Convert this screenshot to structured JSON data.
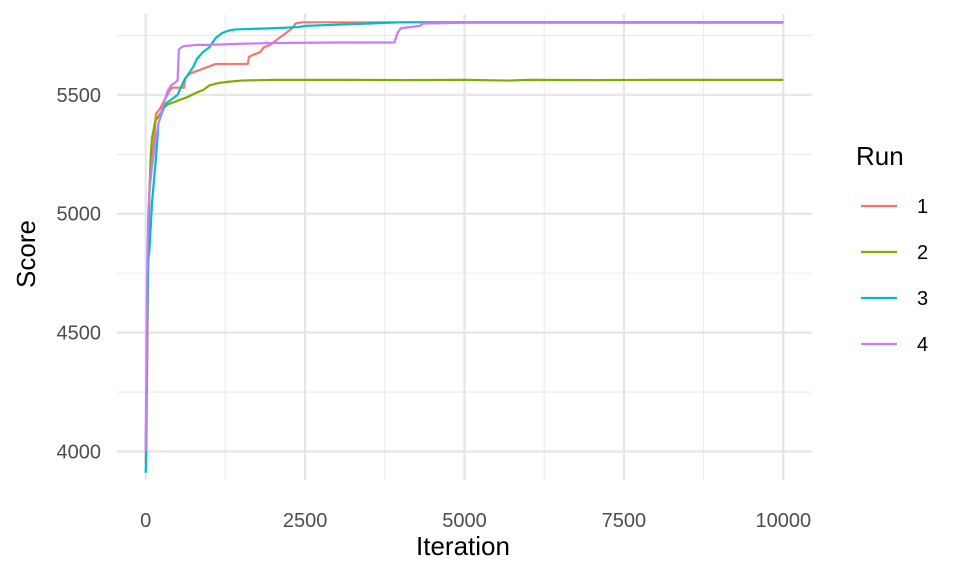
{
  "chart_data": {
    "type": "line",
    "title": "",
    "xlabel": "Iteration",
    "ylabel": "Score",
    "xlim": [
      -450,
      10450
    ],
    "ylim": [
      3880,
      5840
    ],
    "x_major_ticks": [
      0,
      2500,
      5000,
      7500,
      10000
    ],
    "x_tick_labels": [
      "0",
      "2500",
      "5000",
      "7500",
      "10000"
    ],
    "x_minor_ticks": [
      1250,
      3750,
      6250,
      8750
    ],
    "y_major_ticks": [
      4000,
      4500,
      5000,
      5500
    ],
    "y_tick_labels": [
      "4000",
      "4500",
      "5000",
      "5500"
    ],
    "y_minor_ticks": [
      4250,
      4750,
      5250,
      5750
    ],
    "grid": true,
    "legend": {
      "title": "Run",
      "position": "right"
    },
    "series": [
      {
        "name": "1",
        "color": "#F8766D",
        "points": [
          [
            0,
            3950
          ],
          [
            20,
            4300
          ],
          [
            40,
            4800
          ],
          [
            60,
            5100
          ],
          [
            80,
            5200
          ],
          [
            100,
            5260
          ],
          [
            130,
            5300
          ],
          [
            160,
            5420
          ],
          [
            220,
            5440
          ],
          [
            300,
            5480
          ],
          [
            380,
            5520
          ],
          [
            420,
            5530
          ],
          [
            600,
            5530
          ],
          [
            620,
            5570
          ],
          [
            700,
            5590
          ],
          [
            800,
            5600
          ],
          [
            900,
            5610
          ],
          [
            1000,
            5620
          ],
          [
            1100,
            5630
          ],
          [
            1300,
            5630
          ],
          [
            1400,
            5630
          ],
          [
            1600,
            5630
          ],
          [
            1620,
            5660
          ],
          [
            1700,
            5670
          ],
          [
            1800,
            5680
          ],
          [
            1850,
            5700
          ],
          [
            1950,
            5710
          ],
          [
            2050,
            5730
          ],
          [
            2100,
            5740
          ],
          [
            2200,
            5760
          ],
          [
            2300,
            5780
          ],
          [
            2350,
            5800
          ],
          [
            2450,
            5805
          ],
          [
            3500,
            5805
          ],
          [
            10000,
            5805
          ]
        ]
      },
      {
        "name": "2",
        "color": "#7CAE00",
        "points": [
          [
            0,
            4000
          ],
          [
            20,
            4400
          ],
          [
            40,
            4900
          ],
          [
            60,
            5100
          ],
          [
            80,
            5250
          ],
          [
            100,
            5320
          ],
          [
            150,
            5390
          ],
          [
            200,
            5410
          ],
          [
            250,
            5430
          ],
          [
            300,
            5450
          ],
          [
            350,
            5460
          ],
          [
            450,
            5470
          ],
          [
            550,
            5480
          ],
          [
            650,
            5490
          ],
          [
            800,
            5510
          ],
          [
            900,
            5520
          ],
          [
            1000,
            5540
          ],
          [
            1150,
            5550
          ],
          [
            1300,
            5555
          ],
          [
            1500,
            5560
          ],
          [
            2000,
            5563
          ],
          [
            3000,
            5563
          ],
          [
            4000,
            5562
          ],
          [
            5000,
            5563
          ],
          [
            5700,
            5560
          ],
          [
            6000,
            5563
          ],
          [
            7000,
            5562
          ],
          [
            8000,
            5563
          ],
          [
            10000,
            5563
          ]
        ]
      },
      {
        "name": "3",
        "color": "#00BFC4",
        "points": [
          [
            0,
            3910
          ],
          [
            10,
            4000
          ],
          [
            20,
            4500
          ],
          [
            30,
            4700
          ],
          [
            40,
            4800
          ],
          [
            60,
            4850
          ],
          [
            80,
            4950
          ],
          [
            100,
            5050
          ],
          [
            150,
            5200
          ],
          [
            180,
            5300
          ],
          [
            200,
            5380
          ],
          [
            250,
            5420
          ],
          [
            300,
            5460
          ],
          [
            400,
            5480
          ],
          [
            500,
            5500
          ],
          [
            550,
            5530
          ],
          [
            600,
            5560
          ],
          [
            650,
            5580
          ],
          [
            700,
            5600
          ],
          [
            750,
            5620
          ],
          [
            800,
            5650
          ],
          [
            900,
            5680
          ],
          [
            1000,
            5700
          ],
          [
            1100,
            5740
          ],
          [
            1200,
            5760
          ],
          [
            1300,
            5770
          ],
          [
            1400,
            5775
          ],
          [
            2000,
            5780
          ],
          [
            2400,
            5785
          ],
          [
            2500,
            5790
          ],
          [
            3000,
            5795
          ],
          [
            3500,
            5800
          ],
          [
            4000,
            5805
          ],
          [
            10000,
            5805
          ]
        ]
      },
      {
        "name": "4",
        "color": "#C77CFF",
        "points": [
          [
            0,
            4000
          ],
          [
            10,
            4300
          ],
          [
            20,
            4700
          ],
          [
            40,
            5000
          ],
          [
            60,
            5100
          ],
          [
            80,
            5150
          ],
          [
            100,
            5200
          ],
          [
            150,
            5300
          ],
          [
            200,
            5380
          ],
          [
            250,
            5430
          ],
          [
            300,
            5480
          ],
          [
            350,
            5520
          ],
          [
            400,
            5540
          ],
          [
            450,
            5550
          ],
          [
            500,
            5560
          ],
          [
            520,
            5690
          ],
          [
            560,
            5700
          ],
          [
            600,
            5705
          ],
          [
            800,
            5710
          ],
          [
            1000,
            5710
          ],
          [
            1500,
            5715
          ],
          [
            2000,
            5718
          ],
          [
            3000,
            5720
          ],
          [
            3900,
            5720
          ],
          [
            3950,
            5760
          ],
          [
            4000,
            5780
          ],
          [
            4300,
            5790
          ],
          [
            4350,
            5800
          ],
          [
            5000,
            5803
          ],
          [
            10000,
            5803
          ]
        ]
      }
    ]
  }
}
